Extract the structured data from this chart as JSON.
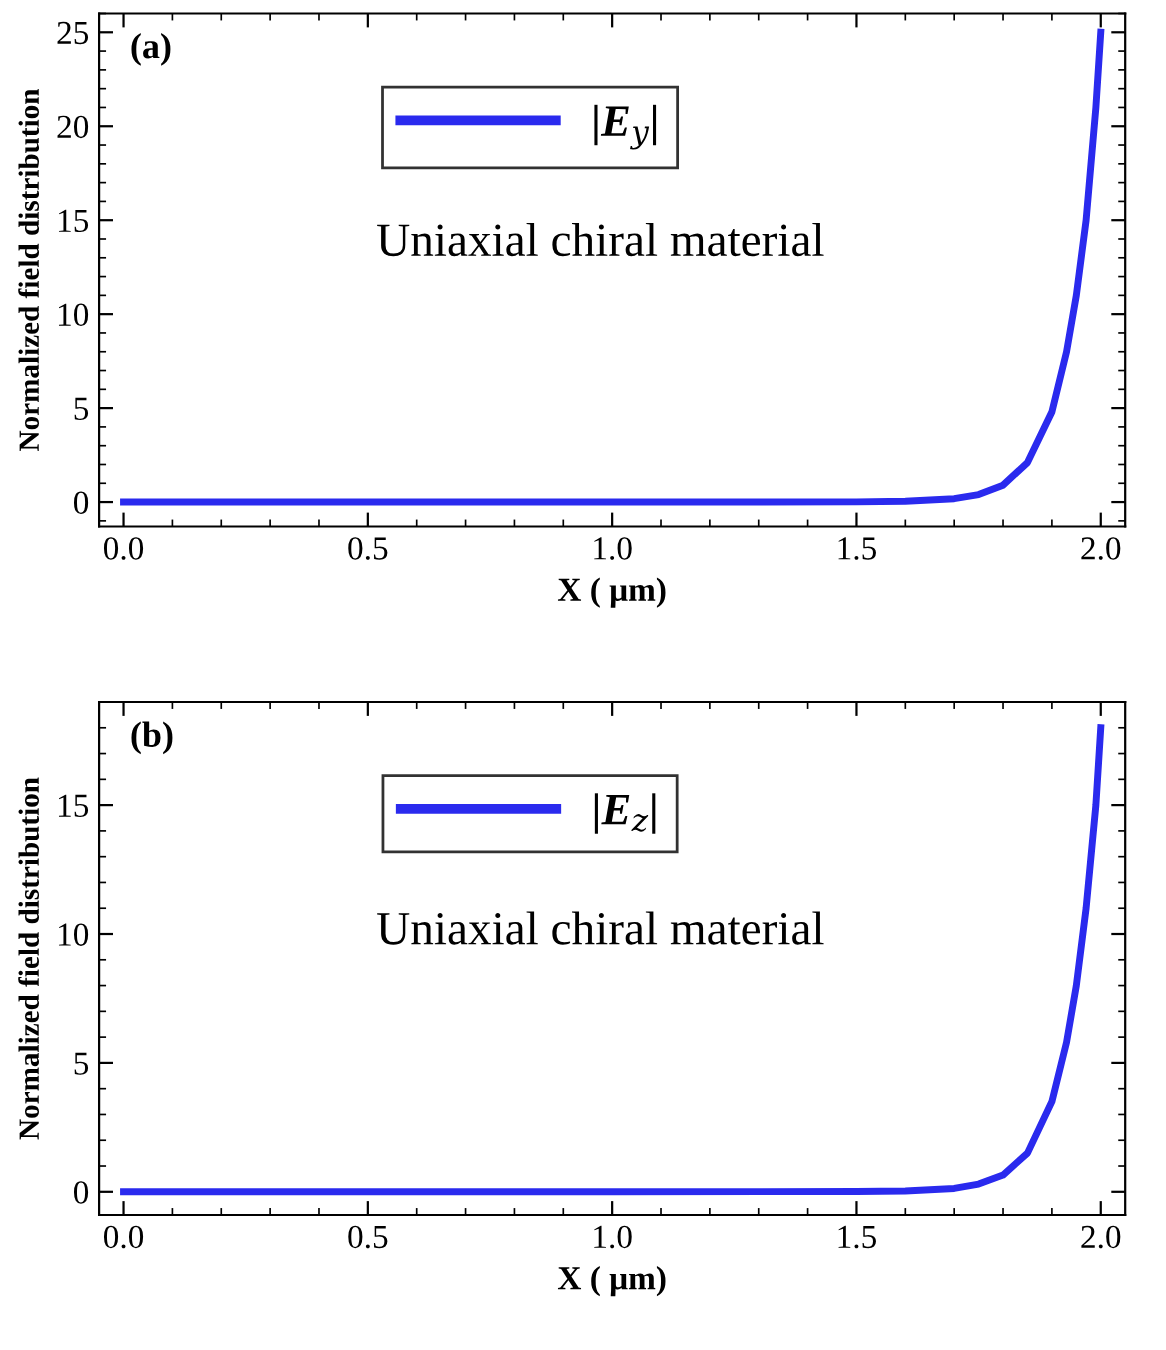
{
  "chart_data": [
    {
      "type": "line",
      "xlabel": "X ( μm)",
      "ylabel": "Normalized field distribution",
      "annotations": [
        "(a)",
        "Uniaxial chiral material"
      ],
      "xlim": [
        -0.05,
        2.05
      ],
      "ylim": [
        -1.3,
        26
      ],
      "xticks": [
        {
          "value": 0,
          "label": "0.0"
        },
        {
          "value": 0.5,
          "label": "0.5"
        },
        {
          "value": 1,
          "label": "1.0"
        },
        {
          "value": 1.5,
          "label": "1.5"
        },
        {
          "value": 2,
          "label": "2.0"
        }
      ],
      "yticks": [
        0,
        5,
        10,
        15,
        20,
        25
      ],
      "grid": false,
      "legend": "top",
      "line_style": "solid",
      "series": [
        {
          "name": "|E$_{y}$|",
          "color": "#2a2aee",
          "x": [
            0,
            0.5,
            1.0,
            1.5,
            1.6,
            1.7,
            1.75,
            1.8,
            1.85,
            1.9,
            1.93,
            1.95,
            1.97,
            1.99,
            2.0
          ],
          "values": [
            0,
            0,
            0,
            0.01,
            0.04,
            0.18,
            0.4,
            0.9,
            2.1,
            4.8,
            8,
            11,
            15,
            21,
            25
          ]
        }
      ]
    },
    {
      "type": "line",
      "xlabel": "X ( μm)",
      "ylabel": "Normalized field distribution",
      "annotations": [
        "(b)",
        "Uniaxial chiral material"
      ],
      "xlim": [
        -0.05,
        2.05
      ],
      "ylim": [
        -0.9,
        19
      ],
      "xticks": [
        {
          "value": 0,
          "label": "0.0"
        },
        {
          "value": 0.5,
          "label": "0.5"
        },
        {
          "value": 1,
          "label": "1.0"
        },
        {
          "value": 1.5,
          "label": "1.5"
        },
        {
          "value": 2,
          "label": "2.0"
        }
      ],
      "yticks": [
        0,
        5,
        10,
        15
      ],
      "grid": false,
      "legend": "top",
      "line_style": "solid",
      "series": [
        {
          "name": "|E$_{z}$|",
          "color": "#2a2aee",
          "x": [
            0,
            0.5,
            1.0,
            1.5,
            1.6,
            1.7,
            1.75,
            1.8,
            1.85,
            1.9,
            1.93,
            1.95,
            1.97,
            1.99,
            2.0
          ],
          "values": [
            0,
            0,
            0,
            0.01,
            0.03,
            0.13,
            0.3,
            0.65,
            1.5,
            3.5,
            5.8,
            8,
            11,
            15,
            18
          ]
        }
      ]
    }
  ]
}
